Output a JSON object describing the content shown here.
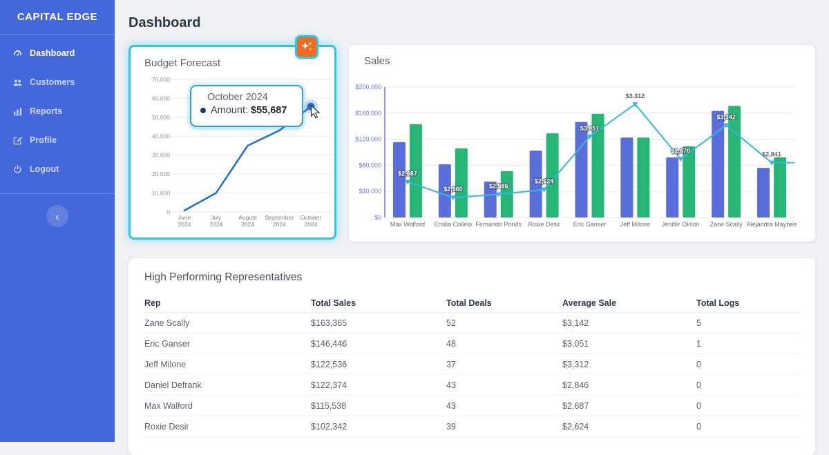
{
  "page": {
    "title": "Dashboard"
  },
  "sidebar": {
    "brand": "CAPITAL EDGE",
    "items": [
      {
        "label": "Dashboard",
        "icon": "gauge",
        "active": true
      },
      {
        "label": "Customers",
        "icon": "users",
        "active": false
      },
      {
        "label": "Reports",
        "icon": "bar-chart",
        "active": false
      },
      {
        "label": "Profile",
        "icon": "edit",
        "active": false
      },
      {
        "label": "Logout",
        "icon": "power",
        "active": false
      }
    ],
    "collapse_icon": "chevron-left"
  },
  "colors": {
    "sidebar_blue": "#4467db",
    "highlight_cyan": "#2cc5e8",
    "ai_button_orange": "#f26b1d",
    "bar_blue": "#5a6edb",
    "bar_green": "#25b575",
    "line_teal": "#39b7d8",
    "budget_line_blue": "#2274cc",
    "axis_label_blue": "#6b77dc"
  },
  "budget_card": {
    "title": "Budget Forecast",
    "tooltip": {
      "title": "October 2024",
      "label": "Amount:",
      "value": "$55,687"
    }
  },
  "sales_card": {
    "title": "Sales"
  },
  "table": {
    "title": "High Performing Representatives",
    "columns": [
      "Rep",
      "Total Sales",
      "Total Deals",
      "Average Sale",
      "Total Logs"
    ],
    "rows": [
      [
        "Zane Scally",
        "$163,365",
        "52",
        "$3,142",
        "5"
      ],
      [
        "Eric Ganser",
        "$146,446",
        "48",
        "$3,051",
        "1"
      ],
      [
        "Jeff Milone",
        "$122,536",
        "37",
        "$3,312",
        "0"
      ],
      [
        "Daniel Defrank",
        "$122,374",
        "43",
        "$2,846",
        "0"
      ],
      [
        "Max Walford",
        "$115,538",
        "43",
        "$2,687",
        "0"
      ],
      [
        "Roxie Desir",
        "$102,342",
        "39",
        "$2,624",
        "0"
      ]
    ]
  },
  "chart_data": [
    {
      "id": "budget_forecast",
      "type": "line",
      "title": "Budget Forecast",
      "x": [
        "June 2024",
        "July 2024",
        "August 2024",
        "September 2024",
        "October 2024"
      ],
      "values": [
        800,
        10000,
        35000,
        43000,
        55687
      ],
      "ylim": [
        0,
        70000
      ],
      "ytick_labels": [
        "0",
        "10,000",
        "20,000",
        "30,000",
        "40,000",
        "50,000",
        "60,000",
        "70,000"
      ],
      "grid": true,
      "line_color": "#2274cc",
      "highlighted_point": {
        "x": "October 2024",
        "value": 55687
      }
    },
    {
      "id": "sales",
      "type": "bar+line",
      "title": "Sales",
      "categories": [
        "Max Walford",
        "Emilia Collelo",
        "Fernando Ponds",
        "Roxie Desir",
        "Eric Ganser",
        "Jeff Milone",
        "Jenifer Olison",
        "Zane Scally",
        "Alejandra Maybee"
      ],
      "series": [
        {
          "name": "total-sales-blue",
          "type": "bar",
          "color": "#5a6edb",
          "values": [
            115538,
            81500,
            55000,
            102342,
            146446,
            122536,
            92000,
            163365,
            76000
          ]
        },
        {
          "name": "total-sales-green",
          "type": "bar",
          "color": "#25b575",
          "values": [
            143000,
            106000,
            71000,
            129000,
            159000,
            122500,
            109000,
            171000,
            92000
          ]
        },
        {
          "name": "average-sale-line",
          "type": "line",
          "color": "#39b7d8",
          "values": [
            2687,
            2560,
            2586,
            2624,
            3051,
            3312,
            2870,
            3142,
            2841
          ],
          "labels": [
            "$2,687",
            "$2,560",
            "$2,586",
            "$2,624",
            "$3,051",
            "$3,312",
            "$2,870",
            "$3,142",
            "$2,841"
          ]
        }
      ],
      "ylim": [
        0,
        200000
      ],
      "ytick_labels": [
        "$0",
        "$40,000",
        "$80,000",
        "$120,000",
        "$160,000",
        "$200,000"
      ],
      "y2lim": [
        2400,
        3450
      ],
      "grid": true,
      "legend": "none"
    }
  ]
}
